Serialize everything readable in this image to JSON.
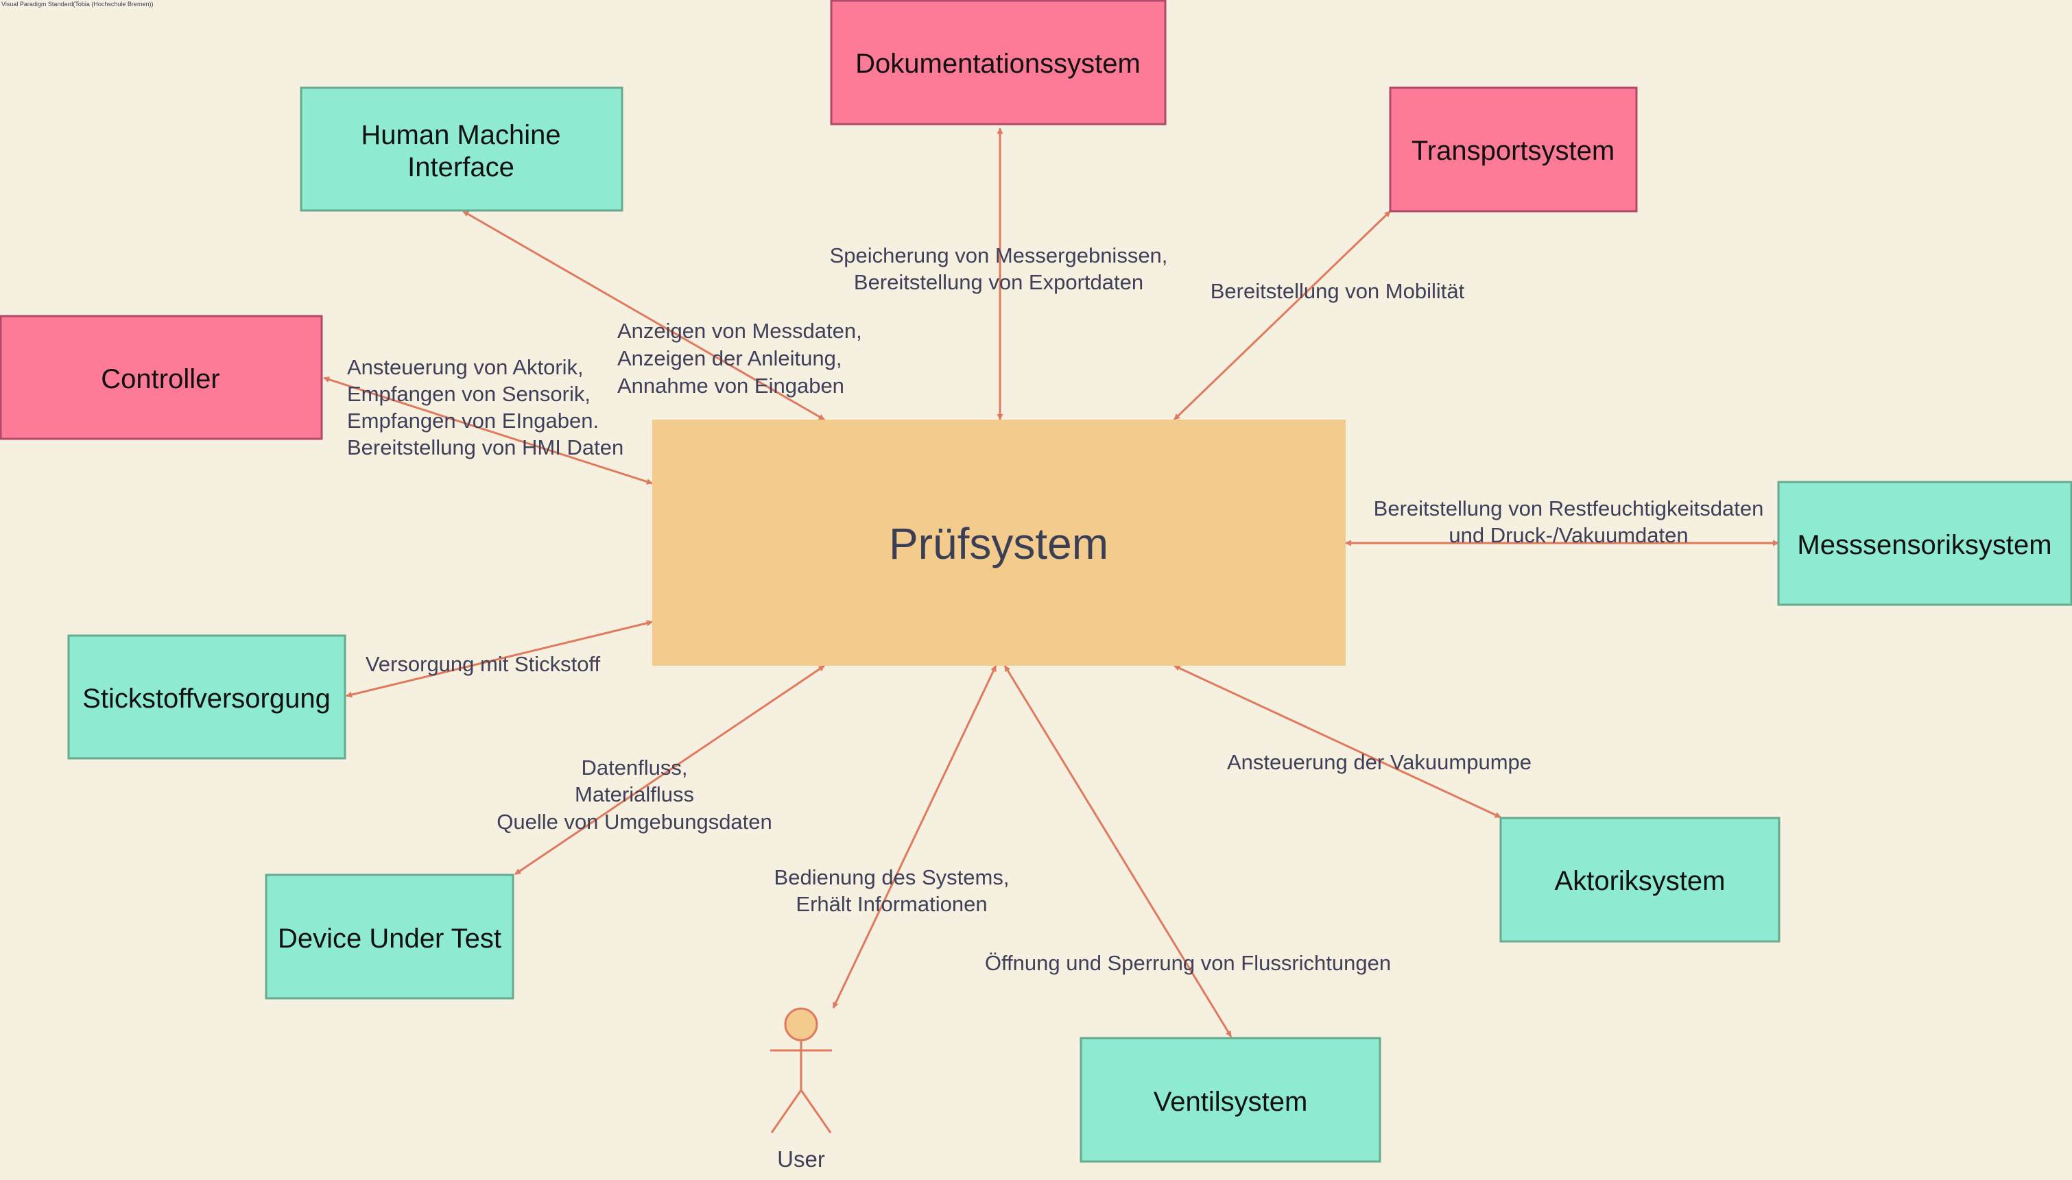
{
  "watermark": "Visual Paradigm Standard(Tobia (Hochschule Bremen))",
  "colors": {
    "background": "#F5F0DF",
    "main_fill": "#F2CB8D",
    "green_fill": "#8EEBD2",
    "green_stroke": "#66AA8F",
    "pink_fill": "#FE7B98",
    "pink_stroke": "#B04A68",
    "edge": "#E07A5F"
  },
  "system": {
    "name": "Prüfsystem"
  },
  "nodes": {
    "dokumentationssystem": {
      "label": [
        "Dokumentationssystem"
      ],
      "color": "pink"
    },
    "hmi": {
      "label": [
        "Human Machine",
        "Interface"
      ],
      "color": "green"
    },
    "transportsystem": {
      "label": [
        "Transportsystem"
      ],
      "color": "pink"
    },
    "controller": {
      "label": [
        "Controller"
      ],
      "color": "pink"
    },
    "messsensoriksystem": {
      "label": [
        "Messsensoriksystem"
      ],
      "color": "green"
    },
    "stickstoffversorgung": {
      "label": [
        "Stickstoffversorgung"
      ],
      "color": "green"
    },
    "device_under_test": {
      "label": [
        "Device Under Test"
      ],
      "color": "green"
    },
    "aktoriksystem": {
      "label": [
        "Aktoriksystem"
      ],
      "color": "green"
    },
    "ventilsystem": {
      "label": [
        "Ventilsystem"
      ],
      "color": "green"
    }
  },
  "actor": {
    "label": "User",
    "icon": "stick-figure-icon"
  },
  "edges": {
    "dokumentation": [
      "Speicherung von Messergebnissen,",
      "Bereitstellung von Exportdaten"
    ],
    "hmi": [
      "Anzeigen von Messdaten,",
      "Anzeigen der Anleitung,",
      "Annahme von Eingaben"
    ],
    "transport": [
      "Bereitstellung von Mobilität"
    ],
    "controller": [
      "Ansteuerung von Aktorik,",
      "Empfangen von Sensorik,",
      "Empfangen von EIngaben.",
      "Bereitstellung von HMI Daten"
    ],
    "messsensorik": [
      "Bereitstellung von Restfeuchtigkeitsdaten",
      "und Druck-/Vakuumdaten"
    ],
    "stickstoff": [
      "Versorgung mit Stickstoff"
    ],
    "dut": [
      "Datenfluss,",
      "Materialfluss",
      "Quelle von Umgebungsdaten"
    ],
    "aktorik": [
      "Ansteuerung der Vakuumpumpe"
    ],
    "user": [
      "Bedienung des Systems,",
      "Erhält Informationen"
    ],
    "ventil": [
      "Öffnung und Sperrung von Flussrichtungen"
    ]
  }
}
